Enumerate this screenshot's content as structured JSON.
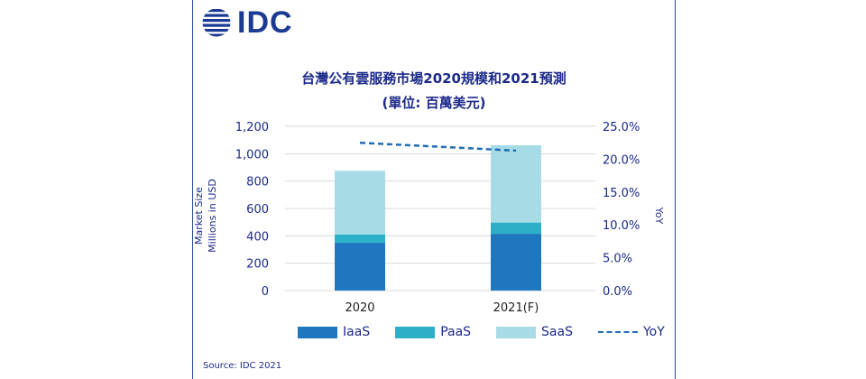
{
  "logo": {
    "text": "IDC"
  },
  "source": "Source: IDC 2021",
  "colors": {
    "iaas": "#1f77bf",
    "paas": "#2bb0c8",
    "saas": "#a7dce6",
    "yoy": "#1f6db5",
    "text": "#1b2a8a",
    "grid": "#d9d9d9"
  },
  "chart_data": {
    "type": "bar",
    "stacked": true,
    "title": "台灣公有雲服務市場2020規模和2021預測",
    "subtitle": "(單位: 百萬美元)",
    "ylabel": "Market Size\nMillions in USD",
    "ylabel_lines": [
      "Market Size",
      "Millions in USD"
    ],
    "y2label": "YoY",
    "categories": [
      "2020",
      "2021(F)"
    ],
    "ylim": [
      0,
      1200
    ],
    "y2lim": [
      0,
      25
    ],
    "yticks": [
      "0",
      "200",
      "400",
      "600",
      "800",
      "1,000",
      "1,200"
    ],
    "y2ticks": [
      "0.0%",
      "5.0%",
      "10.0%",
      "15.0%",
      "20.0%",
      "25.0%"
    ],
    "series": [
      {
        "name": "IaaS",
        "values": [
          350,
          415
        ]
      },
      {
        "name": "PaaS",
        "values": [
          60,
          82
        ]
      },
      {
        "name": "SaaS",
        "values": [
          465,
          565
        ]
      }
    ],
    "line_series": {
      "name": "YoY",
      "values": [
        22.5,
        21.3
      ],
      "axis": "right"
    },
    "grid": true,
    "legend": "bottom"
  }
}
